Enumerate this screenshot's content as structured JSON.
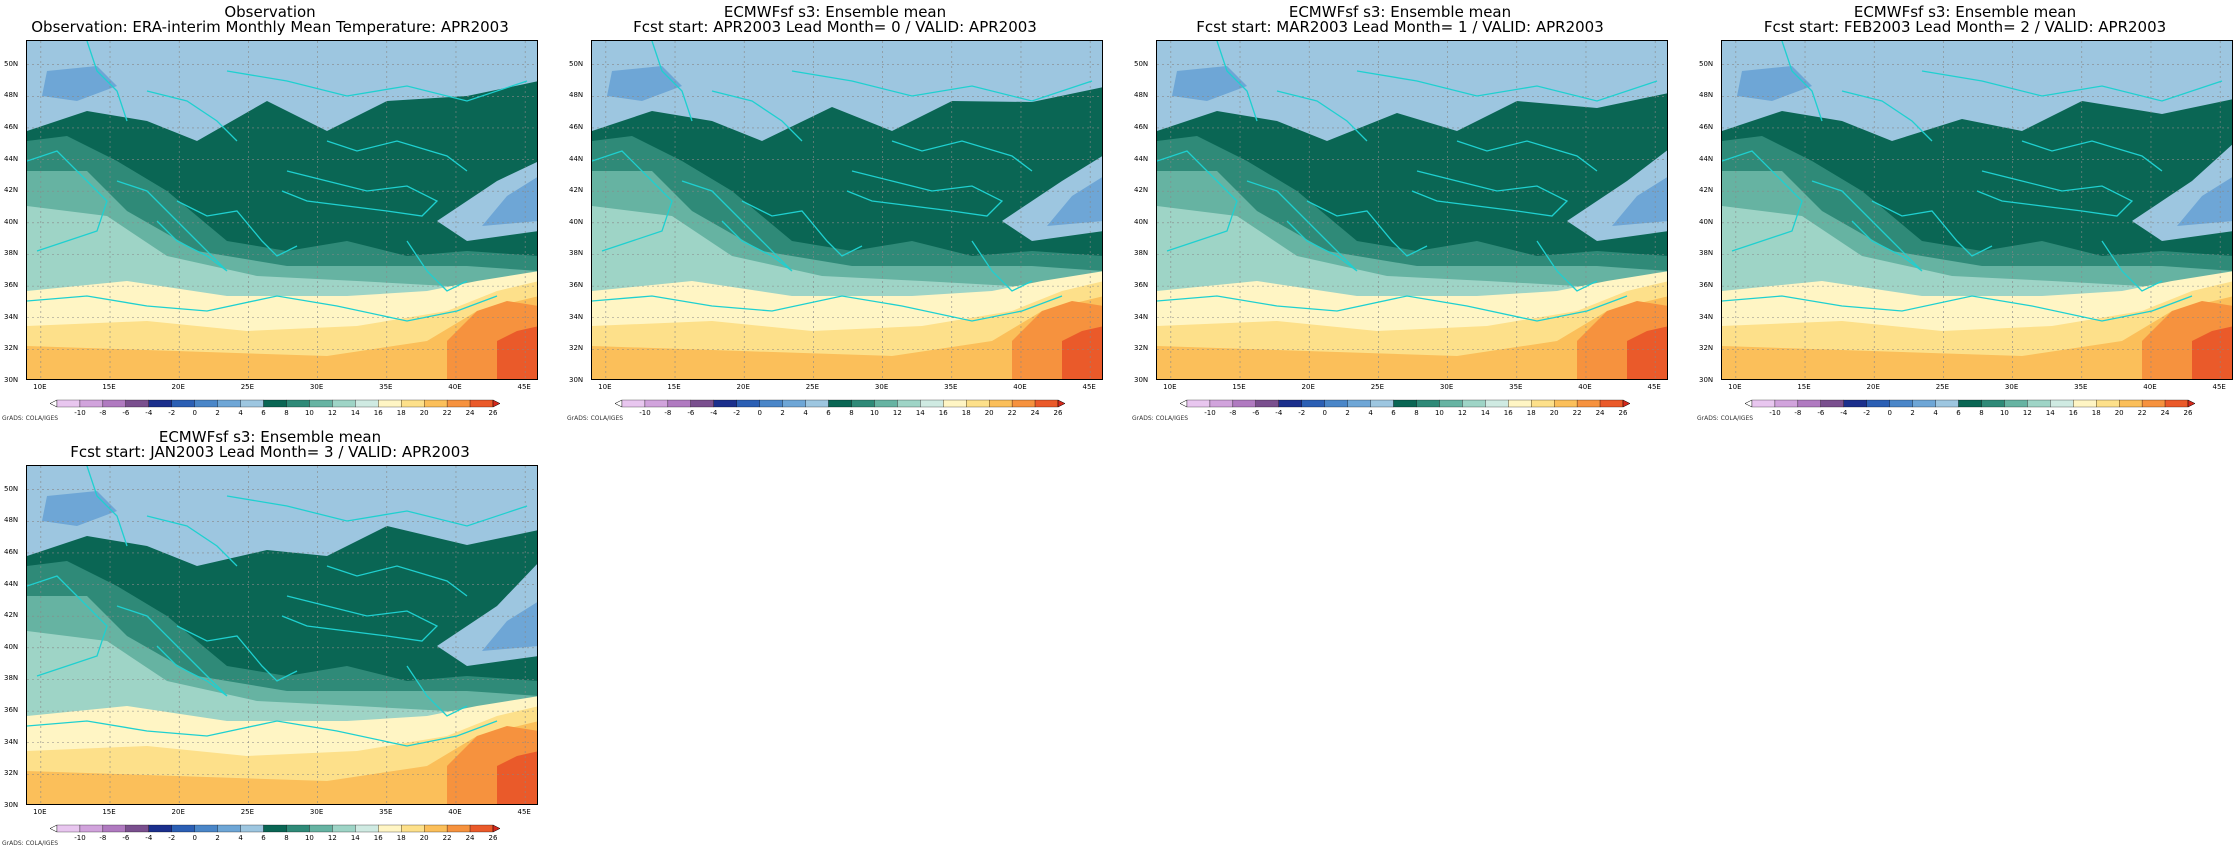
{
  "panels": [
    {
      "title1": "Observation",
      "title2": "Observation: ERA-interim Monthly Mean Temperature: APR2003",
      "variant": 0
    },
    {
      "title1": "ECMWFsf s3: Ensemble mean",
      "title2": "Fcst start: APR2003  Lead Month= 0 / VALID: APR2003",
      "variant": 1
    },
    {
      "title1": "ECMWFsf s3: Ensemble mean",
      "title2": "Fcst start: MAR2003  Lead Month= 1 / VALID: APR2003",
      "variant": 2
    },
    {
      "title1": "ECMWFsf s3: Ensemble mean",
      "title2": "Fcst start: FEB2003  Lead Month= 2 / VALID: APR2003",
      "variant": 3
    },
    {
      "title1": "ECMWFsf s3: Ensemble mean",
      "title2": "Fcst start: JAN2003  Lead Month= 3 / VALID: APR2003",
      "variant": 4
    }
  ],
  "grads_label": "GrADS: COLA/IGES",
  "chart_data": {
    "type": "heatmap",
    "x_ticks": [
      "10E",
      "15E",
      "20E",
      "25E",
      "30E",
      "35E",
      "40E",
      "45E"
    ],
    "y_ticks": [
      "30N",
      "32N",
      "34N",
      "36N",
      "38N",
      "40N",
      "42N",
      "44N",
      "46N",
      "48N",
      "50N"
    ],
    "xlim": [
      9,
      46
    ],
    "ylim": [
      30,
      51.5
    ],
    "colorbar_levels": [
      "-10",
      "-8",
      "-6",
      "-4",
      "-2",
      "0",
      "2",
      "4",
      "6",
      "8",
      "10",
      "12",
      "14",
      "16",
      "18",
      "20",
      "22",
      "24",
      "26"
    ],
    "colorbar_colors": [
      "#ffffff",
      "#e8c6ef",
      "#d1a3dc",
      "#b07ac0",
      "#7a4f8e",
      "#1b2f8c",
      "#2b5fb4",
      "#4a86c8",
      "#6ea6d6",
      "#9dc6e0",
      "#0a6654",
      "#2f8a78",
      "#66b3a2",
      "#9ed4c6",
      "#cfeae2",
      "#fff5c4",
      "#fde08a",
      "#fbbf5a",
      "#f6923e",
      "#ea5a2a",
      "#d4291c"
    ]
  }
}
